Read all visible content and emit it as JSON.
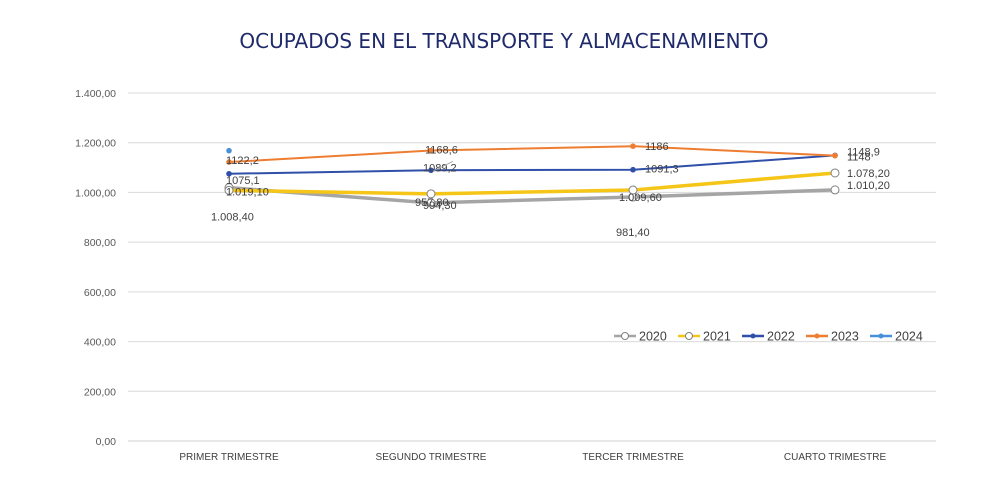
{
  "chart_data": {
    "type": "line",
    "title": "OCUPADOS EN EL TRANSPORTE Y ALMACENAMIENTO",
    "xlabel": "",
    "ylabel": "",
    "ylim": [
      0,
      1400
    ],
    "yticks": [
      0,
      200,
      400,
      600,
      800,
      1000,
      1200,
      1400
    ],
    "ytick_labels": [
      "0,00",
      "200,00",
      "400,00",
      "600,00",
      "800,00",
      "1.000,00",
      "1.200,00",
      "1.400,00"
    ],
    "grid": true,
    "legend_position": "inside-right",
    "categories": [
      "PRIMER TRIMESTRE",
      "SEGUNDO TRIMESTRE",
      "TERCER TRIMESTRE",
      "CUARTO TRIMESTRE"
    ],
    "series": [
      {
        "name": "2020",
        "color": "#a5a5a5",
        "marker": "open-circle",
        "values": [
          1019.1,
          957.8,
          981.4,
          1010.2
        ]
      },
      {
        "name": "2021",
        "color": "#f5c518",
        "marker": "open-circle",
        "values": [
          1008.4,
          994.3,
          1009.6,
          1078.2
        ]
      },
      {
        "name": "2022",
        "color": "#2f4fa8",
        "marker": "dot",
        "values": [
          1075.1,
          1089.2,
          1091.3,
          1148.9
        ]
      },
      {
        "name": "2023",
        "color": "#ed7d31",
        "marker": "dot",
        "values": [
          1122.2,
          1168.6,
          1186,
          1148
        ]
      },
      {
        "name": "2024",
        "color": "#4a90d9",
        "marker": "dot",
        "values": [
          1168,
          null,
          null,
          null
        ]
      }
    ],
    "data_labels": [
      {
        "text": "1122,2",
        "category": 0,
        "value": 1122.2
      },
      {
        "text": "1075,1",
        "category": 0,
        "value": 1075.1
      },
      {
        "text": "1.019,10",
        "category": 0,
        "value": 1019.1
      },
      {
        "text": "1.008,40",
        "category": 0,
        "value": 1008.4
      },
      {
        "text": "1168,6",
        "category": 1,
        "value": 1168.6
      },
      {
        "text": "1089,2",
        "category": 1,
        "value": 1089.2
      },
      {
        "text": "994,30",
        "category": 1,
        "value": 994.3
      },
      {
        "text": "957,80",
        "category": 1,
        "value": 957.8
      },
      {
        "text": "1186",
        "category": 2,
        "value": 1186
      },
      {
        "text": "1.009,60",
        "category": 2,
        "value": 1009.6
      },
      {
        "text": "1091,3",
        "category": 2,
        "value": 1091.3
      },
      {
        "text": "981,40",
        "category": 2,
        "value": 981.4
      },
      {
        "text": "1148",
        "category": 3,
        "value": 1148
      },
      {
        "text": "1148,9",
        "category": 3,
        "value": 1148.9
      },
      {
        "text": "1.078,20",
        "category": 3,
        "value": 1078.2
      },
      {
        "text": "1.010,20",
        "category": 3,
        "value": 1010.2
      }
    ]
  }
}
